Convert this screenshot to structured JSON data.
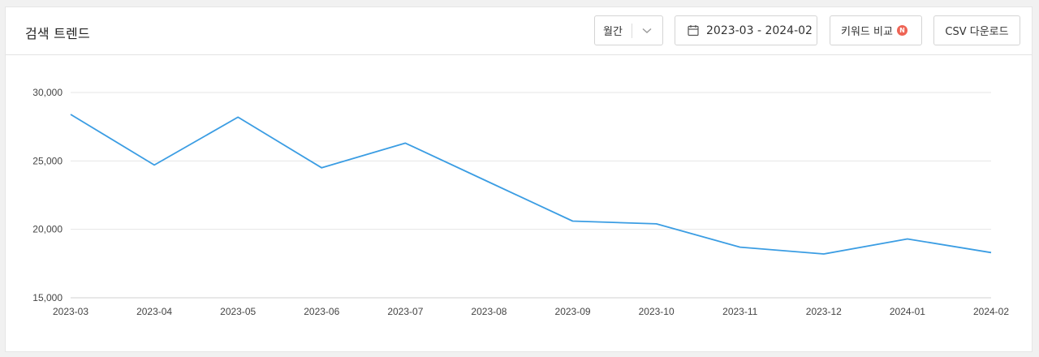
{
  "header": {
    "title": "검색 트렌드",
    "period_select": {
      "value": "월간"
    },
    "date_range": "2023-03 - 2024-02",
    "compare_label": "키워드 비교",
    "compare_badge": "N",
    "csv_label": "CSV 다운로드"
  },
  "colors": {
    "line": "#3b9de3",
    "grid": "#e6e6e6",
    "badge": "#ee6455"
  },
  "chart_data": {
    "type": "line",
    "x": [
      "2023-03",
      "2023-04",
      "2023-05",
      "2023-06",
      "2023-07",
      "2023-08",
      "2023-09",
      "2023-10",
      "2023-11",
      "2023-12",
      "2024-01",
      "2024-02"
    ],
    "series": [
      {
        "values": [
          28400,
          24700,
          28200,
          24500,
          26300,
          23450,
          20600,
          20400,
          18700,
          18200,
          19300,
          18300
        ]
      }
    ],
    "ylim": [
      15000,
      30000
    ],
    "yticks": [
      15000,
      20000,
      25000,
      30000
    ],
    "ytick_labels": [
      "15,000",
      "20,000",
      "25,000",
      "30,000"
    ],
    "grid": true,
    "legend": "none",
    "title": "",
    "xlabel": "",
    "ylabel": ""
  }
}
